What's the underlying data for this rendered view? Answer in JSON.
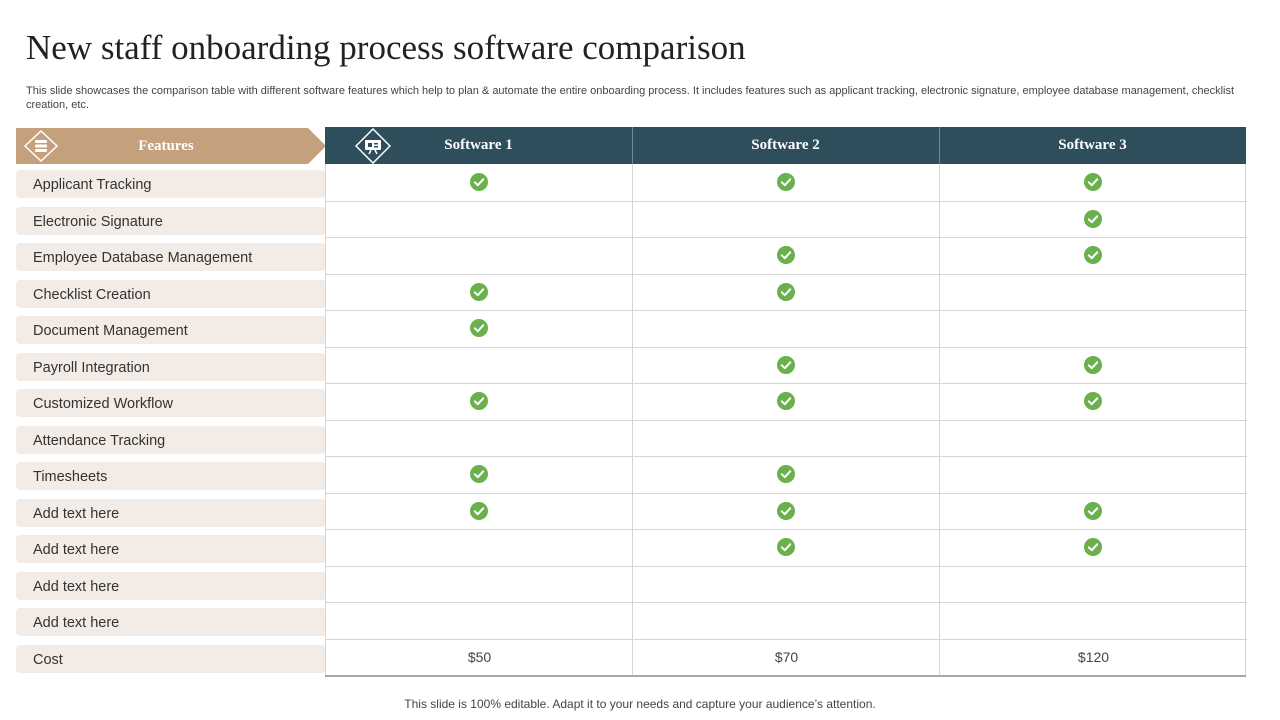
{
  "title": "New staff onboarding process software comparison",
  "subtitle": "This slide showcases the comparison table with different software features which help to plan &  automate the entire onboarding process. It includes features such as applicant tracking, electronic signature, employee database management, checklist creation, etc.",
  "features_header": "Features",
  "features_icon": "database-icon",
  "software_icon": "presentation-icon",
  "colors": {
    "header_bg": "#2e4e5c",
    "features_header_bg": "#c4a07d",
    "row_bg": "#f3ebe5",
    "check": "#6ab04c"
  },
  "software": [
    "Software 1",
    "Software 2",
    "Software 3"
  ],
  "features": [
    "Applicant Tracking",
    "Electronic Signature",
    "Employee Database Management",
    "Checklist Creation",
    "Document Management",
    "Payroll Integration",
    "Customized Workflow",
    "Attendance Tracking",
    "Timesheets",
    "Add text here",
    "Add text here",
    "Add text here",
    "Add text here",
    "Cost"
  ],
  "checks": [
    [
      true,
      true,
      true
    ],
    [
      false,
      false,
      true
    ],
    [
      false,
      true,
      true
    ],
    [
      true,
      true,
      false
    ],
    [
      true,
      false,
      false
    ],
    [
      false,
      true,
      true
    ],
    [
      true,
      true,
      true
    ],
    [
      false,
      false,
      false
    ],
    [
      true,
      true,
      false
    ],
    [
      true,
      true,
      true
    ],
    [
      false,
      true,
      true
    ],
    [
      false,
      false,
      false
    ],
    [
      false,
      false,
      false
    ]
  ],
  "costs": [
    "$50",
    "$70",
    "$120"
  ],
  "footer": "This slide is 100% editable. Adapt it to your needs and capture your audience’s attention."
}
